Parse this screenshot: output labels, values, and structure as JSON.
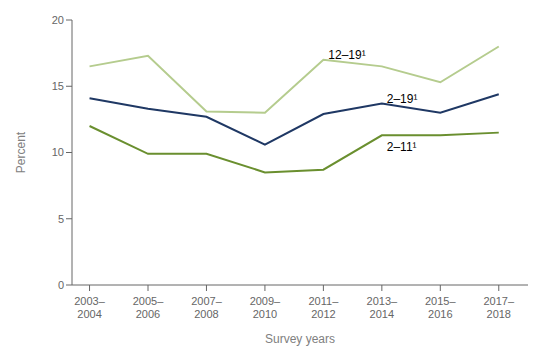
{
  "chart_data": {
    "type": "line",
    "xlabel": "Survey years",
    "ylabel": "Percent",
    "categories": [
      "2003–\n2004",
      "2005–\n2006",
      "2007–\n2008",
      "2009–\n2010",
      "2011–\n2012",
      "2013–\n2014",
      "2015–\n2016",
      "2017–\n2018"
    ],
    "xlim": [
      -0.3,
      7.5
    ],
    "ylim": [
      0,
      20
    ],
    "yticks": [
      0,
      5,
      10,
      15,
      20
    ],
    "grid": false,
    "series": [
      {
        "name": "12–19¹",
        "color": "#b5cc8e",
        "values": [
          16.5,
          17.3,
          13.1,
          13.0,
          17.0,
          16.5,
          15.3,
          18.0
        ]
      },
      {
        "name": "2–19¹",
        "color": "#1f3864",
        "values": [
          14.1,
          13.3,
          12.7,
          10.6,
          12.9,
          13.7,
          13.0,
          14.4
        ]
      },
      {
        "name": "2–11¹",
        "color": "#6a8f2f",
        "values": [
          12.0,
          9.9,
          9.9,
          8.5,
          8.7,
          11.3,
          11.3,
          11.5
        ]
      }
    ],
    "annotations": [
      {
        "text": "12–19¹",
        "x": 4.05,
        "y": 17.35
      },
      {
        "text": "2–19¹",
        "x": 5.05,
        "y": 14.05
      },
      {
        "text": "2–11¹",
        "x": 5.05,
        "y": 10.45
      }
    ]
  }
}
